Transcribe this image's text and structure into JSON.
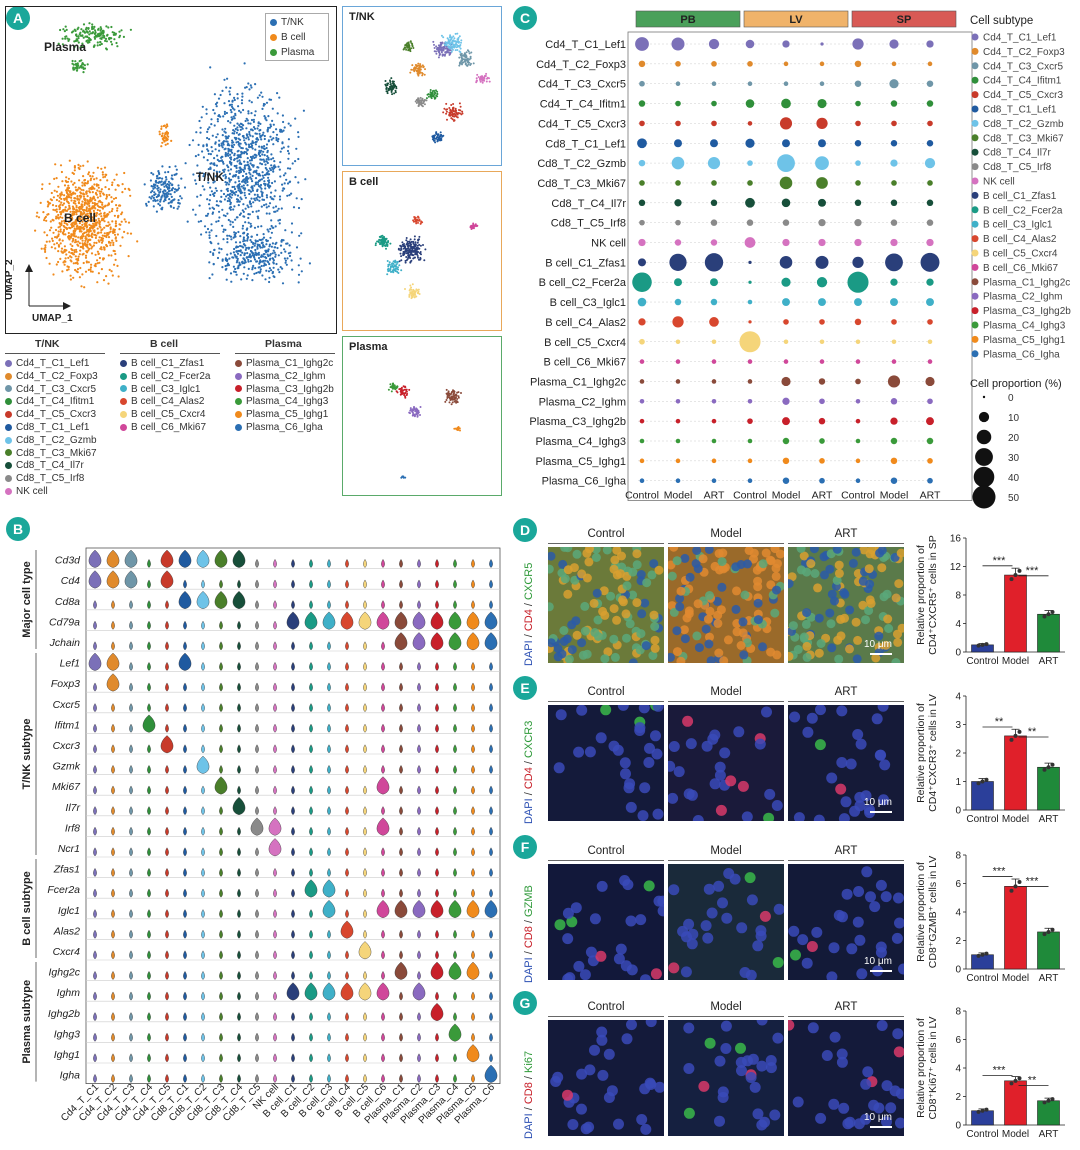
{
  "panels": {
    "A": "A",
    "B": "B",
    "C": "C",
    "D": "D",
    "E": "E",
    "F": "F",
    "G": "G"
  },
  "panelA": {
    "umap_labels": {
      "plasma": "Plasma",
      "bcell": "B cell",
      "tnk": "T/NK",
      "x": "UMAP_1",
      "y": "UMAP_2"
    },
    "main_legend": [
      {
        "name": "T/NK",
        "color": "#2b6fb3"
      },
      {
        "name": "B cell",
        "color": "#f08a1c"
      },
      {
        "name": "Plasma",
        "color": "#3a9a3a"
      }
    ],
    "sub_titles": {
      "tnk": "T/NK",
      "bcell": "B cell",
      "plasma": "Plasma"
    },
    "legend_groups": [
      {
        "title": "T/NK",
        "items": [
          {
            "name": "Cd4_T_C1_Lef1",
            "color": "#7b70b8"
          },
          {
            "name": "Cd4_T_C2_Foxp3",
            "color": "#e08a2c"
          },
          {
            "name": "Cd4_T_C3_Cxcr5",
            "color": "#6f96a8"
          },
          {
            "name": "Cd4_T_C4_Ifitm1",
            "color": "#2f8f3a"
          },
          {
            "name": "Cd4_T_C5_Cxcr3",
            "color": "#c83a2a"
          },
          {
            "name": "Cd8_T_C1_Lef1",
            "color": "#1f5aa0"
          },
          {
            "name": "Cd8_T_C2_Gzmb",
            "color": "#6ec3e8"
          },
          {
            "name": "Cd8_T_C3_Mki67",
            "color": "#4a7f2a"
          },
          {
            "name": "Cd8_T_C4_Il7r",
            "color": "#174f3a"
          },
          {
            "name": "Cd8_T_C5_Irf8",
            "color": "#8a8a8a"
          },
          {
            "name": "NK cell",
            "color": "#d572c0"
          }
        ]
      },
      {
        "title": "B cell",
        "items": [
          {
            "name": "B cell_C1_Zfas1",
            "color": "#2a3f7a"
          },
          {
            "name": "B cell_C2_Fcer2a",
            "color": "#1a9a85"
          },
          {
            "name": "B cell_C3_Iglc1",
            "color": "#3fb0c8"
          },
          {
            "name": "B cell_C4_Alas2",
            "color": "#d8472e"
          },
          {
            "name": "B cell_C5_Cxcr4",
            "color": "#f5d57a"
          },
          {
            "name": "B cell_C6_Mki67",
            "color": "#d0479a"
          }
        ]
      },
      {
        "title": "Plasma",
        "items": [
          {
            "name": "Plasma_C1_Ighg2c",
            "color": "#8a4a3a"
          },
          {
            "name": "Plasma_C2_Ighm",
            "color": "#8a6ac0"
          },
          {
            "name": "Plasma_C3_Ighg2b",
            "color": "#c8202a"
          },
          {
            "name": "Plasma_C4_Ighg3",
            "color": "#3a9a3a"
          },
          {
            "name": "Plasma_C5_Ighg1",
            "color": "#f08a1c"
          },
          {
            "name": "Plasma_C6_Igha",
            "color": "#2b6fb3"
          }
        ]
      }
    ]
  },
  "panelB": {
    "genes": [
      "Cd3d",
      "Cd4",
      "Cd8a",
      "Cd79a",
      "Jchain",
      "Lef1",
      "Foxp3",
      "Cxcr5",
      "Ifitm1",
      "Cxcr3",
      "Gzmk",
      "Mki67",
      "Il7r",
      "Irf8",
      "Ncr1",
      "Zfas1",
      "Fcer2a",
      "Iglc1",
      "Alas2",
      "Cxcr4",
      "Ighg2c",
      "Ighm",
      "Ighg2b",
      "Ighg3",
      "Ighg1",
      "Igha"
    ],
    "groups": [
      {
        "label": "Major cell type",
        "from": 0,
        "to": 4
      },
      {
        "label": "T/NK subtype",
        "from": 5,
        "to": 14
      },
      {
        "label": "B cell subtype",
        "from": 15,
        "to": 19
      },
      {
        "label": "Plasma subtype",
        "from": 20,
        "to": 25
      }
    ],
    "clusters": [
      "Cd4_T_C1",
      "Cd4_T_C2",
      "Cd4_T_C3",
      "Cd4_T_C4",
      "Cd4_T_C5",
      "Cd8_T_C1",
      "Cd8_T_C2",
      "Cd8_T_C3",
      "Cd8_T_C4",
      "Cd8_T_C5",
      "NK cell",
      "B cell_C1",
      "B cell_C2",
      "B cell_C3",
      "B cell_C4",
      "B cell_C5",
      "B cell_C6",
      "Plasma_C1",
      "Plasma_C2",
      "Plasma_C3",
      "Plasma_C4",
      "Plasma_C5",
      "Plasma_C6"
    ],
    "cluster_colors": [
      "#7b70b8",
      "#e08a2c",
      "#6f96a8",
      "#2f8f3a",
      "#c83a2a",
      "#1f5aa0",
      "#6ec3e8",
      "#4a7f2a",
      "#174f3a",
      "#8a8a8a",
      "#d572c0",
      "#2a3f7a",
      "#1a9a85",
      "#3fb0c8",
      "#d8472e",
      "#f5d57a",
      "#d0479a",
      "#8a4a3a",
      "#8a6ac0",
      "#c8202a",
      "#3a9a3a",
      "#f08a1c",
      "#2b6fb3"
    ],
    "big_violins": [
      [
        0,
        0
      ],
      [
        0,
        1
      ],
      [
        0,
        2
      ],
      [
        0,
        4
      ],
      [
        0,
        5
      ],
      [
        0,
        6
      ],
      [
        0,
        7
      ],
      [
        0,
        8
      ],
      [
        1,
        0
      ],
      [
        1,
        1
      ],
      [
        1,
        2
      ],
      [
        1,
        4
      ],
      [
        2,
        5
      ],
      [
        2,
        6
      ],
      [
        2,
        7
      ],
      [
        2,
        8
      ],
      [
        3,
        11
      ],
      [
        3,
        12
      ],
      [
        3,
        13
      ],
      [
        3,
        14
      ],
      [
        3,
        15
      ],
      [
        3,
        16
      ],
      [
        3,
        17
      ],
      [
        3,
        18
      ],
      [
        3,
        19
      ],
      [
        3,
        20
      ],
      [
        3,
        21
      ],
      [
        3,
        22
      ],
      [
        4,
        17
      ],
      [
        4,
        18
      ],
      [
        4,
        19
      ],
      [
        4,
        20
      ],
      [
        4,
        21
      ],
      [
        4,
        22
      ],
      [
        5,
        0
      ],
      [
        5,
        1
      ],
      [
        5,
        5
      ],
      [
        6,
        1
      ],
      [
        8,
        3
      ],
      [
        9,
        4
      ],
      [
        10,
        6
      ],
      [
        11,
        7
      ],
      [
        11,
        16
      ],
      [
        12,
        8
      ],
      [
        13,
        9
      ],
      [
        13,
        10
      ],
      [
        13,
        16
      ],
      [
        14,
        10
      ],
      [
        16,
        12
      ],
      [
        16,
        13
      ],
      [
        17,
        13
      ],
      [
        17,
        16
      ],
      [
        17,
        17
      ],
      [
        17,
        18
      ],
      [
        17,
        19
      ],
      [
        17,
        20
      ],
      [
        17,
        21
      ],
      [
        17,
        22
      ],
      [
        18,
        14
      ],
      [
        19,
        15
      ],
      [
        20,
        17
      ],
      [
        20,
        19
      ],
      [
        20,
        20
      ],
      [
        20,
        21
      ],
      [
        21,
        11
      ],
      [
        21,
        12
      ],
      [
        21,
        13
      ],
      [
        21,
        14
      ],
      [
        21,
        15
      ],
      [
        21,
        16
      ],
      [
        21,
        18
      ],
      [
        22,
        19
      ],
      [
        23,
        20
      ],
      [
        24,
        21
      ],
      [
        25,
        22
      ]
    ]
  },
  "panelC": {
    "tissues": [
      {
        "name": "PB",
        "color": "#4aa05a"
      },
      {
        "name": "LV",
        "color": "#f0b36a"
      },
      {
        "name": "SP",
        "color": "#d85a55"
      }
    ],
    "conditions": [
      "Control",
      "Model",
      "ART",
      "Control",
      "Model",
      "ART",
      "Control",
      "Model",
      "ART"
    ],
    "subtypes": [
      "Cd4_T_C1_Lef1",
      "Cd4_T_C2_Foxp3",
      "Cd4_T_C3_Cxcr5",
      "Cd4_T_C4_Ifitm1",
      "Cd4_T_C5_Cxcr3",
      "Cd8_T_C1_Lef1",
      "Cd8_T_C2_Gzmb",
      "Cd8_T_C3_Mki67",
      "Cd8_T_C4_Il7r",
      "Cd8_T_C5_Irf8",
      "NK cell",
      "B cell_C1_Zfas1",
      "B cell_C2_Fcer2a",
      "B cell_C3_Iglc1",
      "B cell_C4_Alas2",
      "B cell_C5_Cxcr4",
      "B cell_C6_Mki67",
      "Plasma_C1_Ighg2c",
      "Plasma_C2_Ighm",
      "Plasma_C3_Ighg2b",
      "Plasma_C4_Ighg3",
      "Plasma_C5_Ighg1",
      "Plasma_C6_Igha"
    ],
    "colors": [
      "#7b70b8",
      "#e08a2c",
      "#6f96a8",
      "#2f8f3a",
      "#c83a2a",
      "#1f5aa0",
      "#6ec3e8",
      "#4a7f2a",
      "#174f3a",
      "#8a8a8a",
      "#d572c0",
      "#2a3f7a",
      "#1a9a85",
      "#3fb0c8",
      "#d8472e",
      "#f5d57a",
      "#d0479a",
      "#8a4a3a",
      "#8a6ac0",
      "#c8202a",
      "#3a9a3a",
      "#f08a1c",
      "#2b6fb3"
    ],
    "proportions": [
      [
        18,
        16,
        10,
        7,
        5,
        1,
        12,
        8,
        5
      ],
      [
        4,
        3,
        3,
        3,
        2,
        2,
        4,
        2,
        2
      ],
      [
        3,
        2,
        2,
        2,
        2,
        2,
        4,
        8,
        4
      ],
      [
        4,
        3,
        3,
        7,
        9,
        8,
        3,
        4,
        4
      ],
      [
        3,
        3,
        3,
        2,
        14,
        12,
        3,
        3,
        3
      ],
      [
        9,
        6,
        6,
        8,
        6,
        6,
        4,
        4,
        4
      ],
      [
        4,
        15,
        14,
        3,
        30,
        18,
        3,
        5,
        10
      ],
      [
        3,
        3,
        3,
        3,
        15,
        13,
        3,
        3,
        3
      ],
      [
        4,
        5,
        4,
        9,
        7,
        6,
        4,
        4,
        4
      ],
      [
        3,
        3,
        4,
        4,
        4,
        5,
        5,
        4,
        4
      ],
      [
        5,
        4,
        4,
        11,
        5,
        5,
        5,
        5,
        5
      ],
      [
        6,
        28,
        32,
        1,
        15,
        16,
        12,
        30,
        34
      ],
      [
        36,
        6,
        6,
        1,
        8,
        10,
        42,
        5,
        5
      ],
      [
        7,
        4,
        4,
        2,
        6,
        6,
        6,
        6,
        6
      ],
      [
        5,
        12,
        9,
        1,
        3,
        3,
        4,
        3,
        3
      ],
      [
        3,
        2,
        2,
        42,
        2,
        2,
        2,
        2,
        2
      ],
      [
        2,
        2,
        2,
        2,
        2,
        2,
        2,
        2,
        2
      ],
      [
        2,
        2,
        2,
        2,
        8,
        4,
        3,
        14,
        8
      ],
      [
        2,
        2,
        2,
        2,
        5,
        3,
        2,
        4,
        3
      ],
      [
        2,
        2,
        2,
        3,
        6,
        4,
        2,
        5,
        6
      ],
      [
        2,
        2,
        2,
        2,
        4,
        3,
        2,
        4,
        4
      ],
      [
        2,
        2,
        2,
        2,
        4,
        3,
        2,
        4,
        3
      ],
      [
        2,
        2,
        2,
        2,
        4,
        3,
        2,
        4,
        3
      ]
    ],
    "legend_title": "Cell subtype",
    "size_title": "Cell proportion (%)",
    "size_levels": [
      0,
      10,
      20,
      30,
      40,
      50
    ]
  },
  "panelsDEFG": [
    {
      "badge": "D",
      "stain": [
        "DAPI",
        " / ",
        "CD4",
        " / ",
        "CXCR5"
      ],
      "stain_colors": [
        "#2b4fb3",
        "#333",
        "#c8202a",
        "#333",
        "#2f9a3a"
      ],
      "scale": "10 μm",
      "ylabel_1": "Relative proportion of",
      "ylabel_2": "CD4⁺CXCR5⁺ cells in SP",
      "values": [
        1.0,
        10.8,
        5.3
      ],
      "ymax": 16,
      "yticks": [
        0,
        4,
        8,
        12,
        16
      ],
      "sig": [
        "***",
        "***"
      ],
      "img": [
        "#6b7a3a",
        "#9a6a2a",
        "#5a7a4a"
      ]
    },
    {
      "badge": "E",
      "stain": [
        "DAPI",
        " / ",
        "CD4",
        " / ",
        "CXCR3"
      ],
      "stain_colors": [
        "#2b4fb3",
        "#333",
        "#c8202a",
        "#333",
        "#2f9a3a"
      ],
      "scale": "10 μm",
      "ylabel_1": "Relative proportion of",
      "ylabel_2": "CD4⁺CXCR3⁺ cells in LV",
      "values": [
        1.0,
        2.6,
        1.5
      ],
      "ymax": 4,
      "yticks": [
        0,
        1,
        2,
        3,
        4
      ],
      "sig": [
        "**",
        "**"
      ],
      "img": [
        "#141a3a",
        "#1a1a3a",
        "#151a38"
      ]
    },
    {
      "badge": "F",
      "stain": [
        "DAPI",
        " / ",
        "CD8",
        " / ",
        "GZMB"
      ],
      "stain_colors": [
        "#2b4fb3",
        "#333",
        "#c8202a",
        "#333",
        "#2f9a3a"
      ],
      "scale": "10 μm",
      "ylabel_1": "Relative proportion of",
      "ylabel_2": "CD8⁺GZMB⁺ cells in LV",
      "values": [
        1.0,
        5.8,
        2.6
      ],
      "ymax": 8,
      "yticks": [
        0,
        2,
        4,
        6,
        8
      ],
      "sig": [
        "***",
        "***"
      ],
      "img": [
        "#12183a",
        "#1a2a3a",
        "#131a38"
      ]
    },
    {
      "badge": "G",
      "stain": [
        "DAPI",
        " / ",
        "CD8",
        " / ",
        "Ki67"
      ],
      "stain_colors": [
        "#2b4fb3",
        "#333",
        "#c8202a",
        "#333",
        "#2f9a3a"
      ],
      "scale": "10 μm",
      "ylabel_1": "Relative proportion of",
      "ylabel_2": "CD8⁺Ki67⁺ cells in LV",
      "values": [
        1.0,
        3.1,
        1.7
      ],
      "ymax": 8,
      "yticks": [
        0,
        2,
        4,
        6,
        8
      ],
      "sig": [
        "***",
        "**"
      ],
      "img": [
        "#141a3a",
        "#152040",
        "#141a3a"
      ]
    }
  ],
  "micro_headers": [
    "Control",
    "Model",
    "ART"
  ],
  "bar_categories": [
    "Control",
    "Model",
    "ART"
  ],
  "bar_colors": [
    "#2b3f9a",
    "#e0202a",
    "#1f8a3a"
  ],
  "chart_data": [
    {
      "type": "bar",
      "title": "D",
      "categories": [
        "Control",
        "Model",
        "ART"
      ],
      "values": [
        1.0,
        10.8,
        5.3
      ],
      "ylabel": "Relative proportion of CD4⁺CXCR5⁺ cells in SP",
      "ylim": [
        0,
        16
      ]
    },
    {
      "type": "bar",
      "title": "E",
      "categories": [
        "Control",
        "Model",
        "ART"
      ],
      "values": [
        1.0,
        2.6,
        1.5
      ],
      "ylabel": "Relative proportion of CD4⁺CXCR3⁺ cells in LV",
      "ylim": [
        0,
        4
      ]
    },
    {
      "type": "bar",
      "title": "F",
      "categories": [
        "Control",
        "Model",
        "ART"
      ],
      "values": [
        1.0,
        5.8,
        2.6
      ],
      "ylabel": "Relative proportion of CD8⁺GZMB⁺ cells in LV",
      "ylim": [
        0,
        8
      ]
    },
    {
      "type": "bar",
      "title": "G",
      "categories": [
        "Control",
        "Model",
        "ART"
      ],
      "values": [
        1.0,
        3.1,
        1.7
      ],
      "ylabel": "Relative proportion of CD8⁺Ki67⁺ cells in LV",
      "ylim": [
        0,
        8
      ]
    }
  ]
}
